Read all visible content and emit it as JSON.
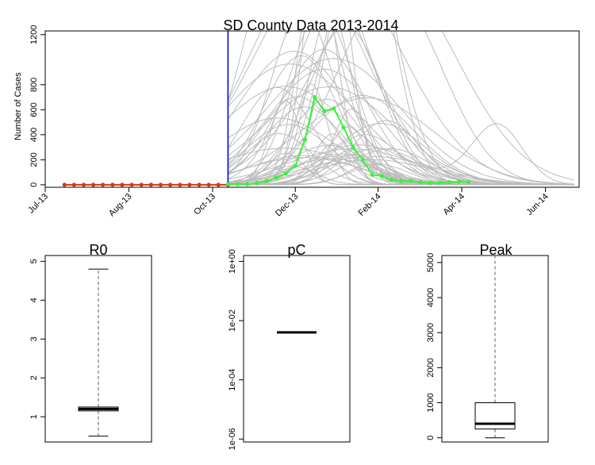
{
  "chart_data": [
    {
      "type": "line",
      "title": "SD County Data 2013-2014",
      "ylabel": "Number of Cases",
      "xlabel": "",
      "ylim": [
        -20,
        1230
      ],
      "y_ticks": [
        "0",
        "200",
        "400",
        "600",
        "800",
        "1200"
      ],
      "x_tick_labels": [
        "Jul-13",
        "Aug-13",
        "Oct-13",
        "Dec-13",
        "Feb-14",
        "Apr-14",
        "Jun-14"
      ],
      "x_tick_weeks": [
        0,
        8.7,
        17.4,
        26,
        34.6,
        43.3,
        52
      ],
      "xlim_weeks": [
        0,
        55.5
      ],
      "vertical_line": {
        "week": 19,
        "color": "#1f1fd0"
      },
      "observed_series": {
        "color": "#d43a10",
        "x_weeks": [
          2,
          3,
          4,
          5,
          6,
          7,
          8,
          9,
          10,
          11,
          12,
          13,
          14,
          15,
          16,
          17,
          18,
          19
        ],
        "values": [
          0,
          0,
          0,
          0,
          0,
          0,
          0,
          0,
          0,
          0,
          0,
          0,
          0,
          0,
          0,
          0,
          0,
          0
        ]
      },
      "fit_series": {
        "color": "#3df03d",
        "x_weeks": [
          19,
          20,
          21,
          22,
          23,
          24,
          25,
          26,
          27,
          28,
          29,
          30,
          31,
          32,
          33,
          34,
          35,
          36,
          37,
          38,
          39,
          40,
          41,
          42,
          43,
          44
        ],
        "values": [
          5,
          5,
          5,
          15,
          30,
          55,
          90,
          150,
          360,
          700,
          590,
          610,
          460,
          300,
          200,
          80,
          70,
          40,
          30,
          30,
          20,
          15,
          15,
          20,
          25,
          20
        ]
      },
      "simulation_color": "#bcbcbc"
    },
    {
      "type": "box",
      "title": "R0",
      "y_ticks": [
        "1",
        "2",
        "3",
        "4",
        "5"
      ],
      "ylim": [
        0.35,
        5.15
      ],
      "whisker_low": 0.5,
      "q1": 1.15,
      "median": 1.2,
      "q3": 1.25,
      "whisker_high": 4.8
    },
    {
      "type": "box",
      "title": "pC",
      "y_ticks": [
        "1e-06",
        "1e-04",
        "1e-02",
        "1e+00"
      ],
      "scale": "log",
      "ylim_log10": [
        -6.1,
        0.2
      ],
      "median": 0.004
    },
    {
      "type": "box",
      "title": "Peak",
      "y_ticks": [
        "0",
        "1000",
        "2000",
        "3000",
        "4000",
        "5000"
      ],
      "ylim": [
        -120,
        5200
      ],
      "whisker_low": 0,
      "q1": 250,
      "median": 400,
      "q3": 1000,
      "whisker_high": 5200
    }
  ]
}
